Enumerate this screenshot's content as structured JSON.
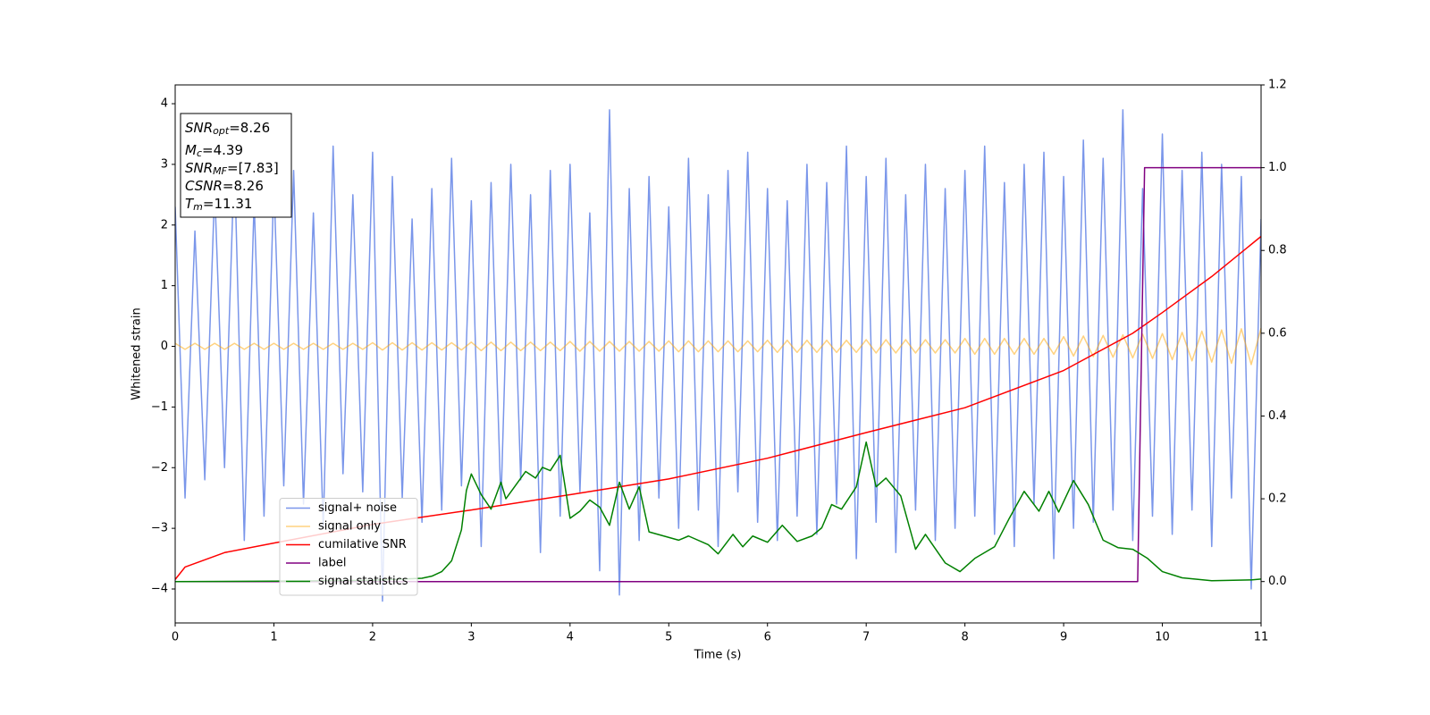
{
  "chart_data": {
    "type": "line",
    "xlabel": "Time (s)",
    "ylabel": "Whitened strain",
    "xlim": [
      0,
      11
    ],
    "xticks": [
      0,
      1,
      2,
      3,
      4,
      5,
      6,
      7,
      8,
      9,
      10,
      11
    ],
    "ylim": [
      -4.56,
      4.31
    ],
    "yticks": [
      {
        "value": -4,
        "label": "−4"
      },
      {
        "value": -3,
        "label": "−3"
      },
      {
        "value": -2,
        "label": "−2"
      },
      {
        "value": -1,
        "label": "−1"
      },
      0,
      1,
      2,
      3,
      4
    ],
    "y2lim": [
      -0.1,
      1.2
    ],
    "y2ticks": [
      {
        "value": 0,
        "label": "0.0"
      },
      0.2,
      0.4,
      0.6,
      0.8,
      {
        "value": 1,
        "label": "1.0"
      },
      1.2
    ],
    "legend": "lower left",
    "annotation": [
      {
        "symbol": "SNR",
        "subscript": "opt",
        "text": "=8.26"
      },
      {
        "symbol": "M",
        "subscript": "c",
        "text": "=4.39"
      },
      {
        "symbol": "SNR",
        "subscript": "MF",
        "text": "=[7.83]"
      },
      {
        "symbol": "CSNR",
        "text": "=8.26"
      },
      {
        "symbol": "T",
        "subscript": "m",
        "text": "=11.31"
      }
    ],
    "x": [
      0,
      0.1,
      0.2,
      0.3,
      0.4,
      0.5,
      0.6,
      0.7,
      0.8,
      0.9,
      1,
      1.1,
      1.2,
      1.3,
      1.4,
      1.5,
      1.6,
      1.7,
      1.8,
      1.9,
      2,
      2.1,
      2.2,
      2.3,
      2.4,
      2.5,
      2.6,
      2.7,
      2.8,
      2.9,
      3,
      3.1,
      3.2,
      3.3,
      3.4,
      3.5,
      3.6,
      3.7,
      3.8,
      3.9,
      4,
      4.1,
      4.2,
      4.3,
      4.4,
      4.5,
      4.6,
      4.7,
      4.8,
      4.9,
      5,
      5.1,
      5.2,
      5.3,
      5.4,
      5.5,
      5.6,
      5.7,
      5.8,
      5.9,
      6,
      6.1,
      6.2,
      6.3,
      6.4,
      6.5,
      6.6,
      6.7,
      6.8,
      6.9,
      7,
      7.1,
      7.2,
      7.3,
      7.4,
      7.5,
      7.6,
      7.7,
      7.8,
      7.9,
      8,
      8.1,
      8.2,
      8.3,
      8.4,
      8.5,
      8.6,
      8.7,
      8.8,
      8.9,
      9,
      9.1,
      9.2,
      9.3,
      9.4,
      9.5,
      9.6,
      9.7,
      9.8,
      9.9,
      10,
      10.1,
      10.2,
      10.3,
      10.4,
      10.5,
      10.6,
      10.7,
      10.8,
      10.9,
      11
    ],
    "series": [
      {
        "name": "signal+ noise",
        "color": "#4169e1",
        "alpha": 0.7,
        "values": [
          2.3,
          -2.5,
          1.9,
          -2.2,
          2.6,
          -2.0,
          3.1,
          -3.2,
          2.4,
          -2.8,
          2.7,
          -2.3,
          2.9,
          -2.6,
          2.2,
          -3.0,
          3.3,
          -2.1,
          2.5,
          -2.4,
          3.2,
          -4.2,
          2.8,
          -2.5,
          2.1,
          -2.9,
          2.6,
          -2.7,
          3.1,
          -2.3,
          2.4,
          -3.3,
          2.7,
          -2.6,
          3.0,
          -2.2,
          2.5,
          -3.4,
          2.9,
          -2.8,
          3.0,
          -2.4,
          2.2,
          -3.7,
          3.9,
          -4.1,
          2.6,
          -3.2,
          2.8,
          -2.5,
          2.3,
          -3.0,
          3.1,
          -2.7,
          2.5,
          -3.3,
          2.9,
          -2.4,
          3.2,
          -2.9,
          2.6,
          -3.2,
          2.4,
          -2.8,
          3.0,
          -3.1,
          2.7,
          -2.6,
          3.3,
          -3.5,
          2.8,
          -2.9,
          3.1,
          -3.4,
          2.5,
          -2.7,
          3.0,
          -3.2,
          2.6,
          -3.0,
          2.9,
          -2.8,
          3.3,
          -3.1,
          2.7,
          -3.3,
          3.0,
          -2.6,
          3.2,
          -3.5,
          2.8,
          -3.0,
          3.4,
          -2.9,
          3.1,
          -2.7,
          3.9,
          -3.2,
          2.6,
          -2.8,
          3.5,
          -3.1,
          2.9,
          -2.7,
          3.2,
          -3.3,
          3.0,
          -2.5,
          2.8,
          -4.0,
          2.1
        ]
      },
      {
        "name": "signal only",
        "color": "#ffa500",
        "alpha": 0.5,
        "values": [
          0.05,
          -0.05,
          0.05,
          -0.05,
          0.05,
          -0.05,
          0.05,
          -0.05,
          0.05,
          -0.05,
          0.05,
          -0.05,
          0.05,
          -0.05,
          0.05,
          -0.05,
          0.05,
          -0.05,
          0.05,
          -0.05,
          0.06,
          -0.06,
          0.06,
          -0.06,
          0.06,
          -0.06,
          0.06,
          -0.06,
          0.06,
          -0.06,
          0.07,
          -0.07,
          0.07,
          -0.07,
          0.07,
          -0.07,
          0.07,
          -0.07,
          0.07,
          -0.07,
          0.08,
          -0.08,
          0.08,
          -0.08,
          0.08,
          -0.08,
          0.08,
          -0.08,
          0.08,
          -0.08,
          0.09,
          -0.09,
          0.09,
          -0.09,
          0.09,
          -0.09,
          0.09,
          -0.09,
          0.09,
          -0.09,
          0.1,
          -0.1,
          0.1,
          -0.1,
          0.1,
          -0.1,
          0.1,
          -0.1,
          0.1,
          -0.1,
          0.11,
          -0.11,
          0.11,
          -0.11,
          0.11,
          -0.11,
          0.11,
          -0.11,
          0.11,
          -0.11,
          0.13,
          -0.13,
          0.13,
          -0.13,
          0.13,
          -0.13,
          0.13,
          -0.13,
          0.13,
          -0.13,
          0.16,
          -0.16,
          0.17,
          -0.17,
          0.18,
          -0.18,
          0.19,
          -0.19,
          0.2,
          -0.2,
          0.21,
          -0.22,
          0.23,
          -0.24,
          0.25,
          -0.26,
          0.27,
          -0.28,
          0.29,
          -0.3,
          0.3
        ]
      },
      {
        "name": "cumilative SNR",
        "color": "#ff0000",
        "axis": "y2",
        "x": [
          0,
          0.1,
          0.5,
          1,
          2,
          3,
          4,
          5,
          6,
          7,
          8,
          9,
          9.7,
          10,
          10.5,
          11
        ],
        "values": [
          0.005,
          0.035,
          0.07,
          0.093,
          0.138,
          0.173,
          0.21,
          0.248,
          0.298,
          0.36,
          0.42,
          0.51,
          0.6,
          0.65,
          0.737,
          0.834
        ]
      },
      {
        "name": "label",
        "color": "#800080",
        "axis": "y2",
        "x": [
          0,
          9.75,
          9.82,
          11
        ],
        "values": [
          0,
          0,
          1,
          1
        ]
      },
      {
        "name": "signal statistics",
        "color": "#008000",
        "axis": "y2",
        "x": [
          0,
          1,
          2,
          2.5,
          2.6,
          2.7,
          2.8,
          2.9,
          2.95,
          3,
          3.1,
          3.2,
          3.3,
          3.35,
          3.45,
          3.55,
          3.65,
          3.72,
          3.8,
          3.9,
          4,
          4.1,
          4.2,
          4.3,
          4.4,
          4.5,
          4.6,
          4.7,
          4.8,
          4.95,
          5.1,
          5.2,
          5.4,
          5.5,
          5.65,
          5.75,
          5.85,
          6,
          6.15,
          6.3,
          6.45,
          6.55,
          6.65,
          6.75,
          6.9,
          7,
          7.1,
          7.2,
          7.35,
          7.5,
          7.6,
          7.8,
          7.95,
          8.1,
          8.3,
          8.45,
          8.6,
          8.75,
          8.85,
          8.95,
          9.1,
          9.25,
          9.4,
          9.55,
          9.7,
          9.85,
          10,
          10.2,
          10.5,
          10.9,
          11
        ],
        "values": [
          0,
          0.001,
          0.003,
          0.008,
          0.013,
          0.024,
          0.05,
          0.125,
          0.22,
          0.26,
          0.21,
          0.175,
          0.24,
          0.2,
          0.233,
          0.266,
          0.25,
          0.276,
          0.268,
          0.305,
          0.153,
          0.17,
          0.197,
          0.18,
          0.136,
          0.24,
          0.175,
          0.229,
          0.12,
          0.11,
          0.1,
          0.11,
          0.089,
          0.067,
          0.114,
          0.084,
          0.11,
          0.095,
          0.136,
          0.097,
          0.11,
          0.13,
          0.186,
          0.175,
          0.229,
          0.337,
          0.229,
          0.25,
          0.207,
          0.078,
          0.114,
          0.045,
          0.024,
          0.056,
          0.084,
          0.153,
          0.218,
          0.17,
          0.218,
          0.168,
          0.244,
          0.186,
          0.1,
          0.082,
          0.078,
          0.056,
          0.024,
          0.009,
          0.002,
          0.004,
          0.006
        ]
      }
    ]
  }
}
